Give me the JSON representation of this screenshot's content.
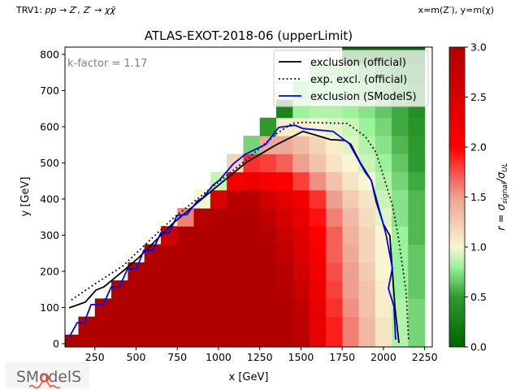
{
  "header": {
    "process_prefix": "TRV1: ",
    "process_math": "pp → Z′, Z′ → χχ̄",
    "axes_note": "x=m(Z′), y=m(χ)"
  },
  "logo": {
    "text": "SModelS"
  },
  "colors": {
    "exclusion_official": "#000000",
    "expected_official": "#000000",
    "exclusion_smodels": "#0000ff"
  },
  "chart_data": {
    "type": "heatmap",
    "title": "ATLAS-EXOT-2018-06 (upperLimit)",
    "annotation": "k-factor = 1.17",
    "xlabel": "x [GeV]",
    "ylabel": "y [GeV]",
    "xlim": [
      69,
      2296
    ],
    "ylim": [
      -9,
      820
    ],
    "xticks": [
      "250",
      "500",
      "750",
      "1000",
      "1250",
      "1500",
      "1750",
      "2000",
      "2250"
    ],
    "xtick_values": [
      250,
      500,
      750,
      1000,
      1250,
      1500,
      1750,
      2000,
      2250
    ],
    "yticks": [
      "0",
      "100",
      "200",
      "300",
      "400",
      "500",
      "600",
      "700",
      "800"
    ],
    "ytick_values": [
      0,
      100,
      200,
      300,
      400,
      500,
      600,
      700,
      800
    ],
    "grid": false,
    "legend_position": "top-right",
    "cell_size": [
      100,
      50
    ],
    "x": [
      100,
      200,
      300,
      400,
      500,
      600,
      700,
      800,
      900,
      1000,
      1100,
      1200,
      1300,
      1400,
      1500,
      1600,
      1700,
      1800,
      1900,
      2000,
      2100,
      2200
    ],
    "y": [
      0,
      50,
      100,
      150,
      200,
      250,
      300,
      350,
      400,
      450,
      500,
      550,
      600,
      650,
      700,
      750,
      800
    ],
    "z": [
      [
        3,
        3,
        3,
        3,
        3,
        3,
        3,
        3,
        3,
        3,
        3,
        3,
        3,
        3,
        2.9,
        2.3,
        1.9,
        1.6,
        1.35,
        1.1,
        0.85,
        0.7
      ],
      [
        null,
        3,
        3,
        3,
        3,
        3,
        3,
        3,
        3,
        3,
        3,
        3,
        3,
        3,
        2.85,
        2.3,
        1.9,
        1.6,
        1.35,
        1.1,
        0.85,
        0.7
      ],
      [
        null,
        null,
        3,
        3,
        3,
        3,
        3,
        3,
        3,
        3,
        3,
        3,
        3,
        3,
        2.8,
        2.25,
        1.85,
        1.55,
        1.3,
        1.05,
        0.85,
        0.7
      ],
      [
        null,
        null,
        null,
        3,
        3,
        3,
        3,
        3,
        3,
        3,
        3,
        3,
        3,
        2.95,
        2.7,
        2.2,
        1.8,
        1.5,
        1.3,
        1.05,
        0.8,
        0.65
      ],
      [
        null,
        null,
        null,
        null,
        3,
        3,
        3,
        3,
        3,
        3,
        3,
        3,
        3,
        2.9,
        2.6,
        2.15,
        1.75,
        1.5,
        1.25,
        1.0,
        0.8,
        0.65
      ],
      [
        null,
        null,
        null,
        null,
        null,
        3,
        3,
        3,
        3,
        3,
        3,
        3,
        3,
        2.8,
        2.5,
        2.1,
        1.7,
        1.45,
        1.2,
        1.0,
        0.8,
        0.65
      ],
      [
        null,
        null,
        null,
        null,
        null,
        null,
        2.6,
        3,
        3,
        3,
        3,
        3,
        2.95,
        2.7,
        2.4,
        2.05,
        1.7,
        1.4,
        1.2,
        1.0,
        0.8,
        0.6
      ],
      [
        null,
        null,
        null,
        null,
        null,
        null,
        null,
        1.6,
        2.9,
        3,
        3,
        3,
        2.8,
        2.55,
        2.3,
        1.95,
        1.6,
        1.35,
        1.15,
        0.95,
        0.75,
        0.6
      ],
      [
        null,
        null,
        null,
        null,
        null,
        null,
        null,
        null,
        1.0,
        2.5,
        2.9,
        2.9,
        2.6,
        2.35,
        2.15,
        1.85,
        1.5,
        1.25,
        1.1,
        0.9,
        0.75,
        0.6
      ],
      [
        null,
        null,
        null,
        null,
        null,
        null,
        null,
        null,
        null,
        0.9,
        2.15,
        2.2,
        2.1,
        2.0,
        1.8,
        1.55,
        1.3,
        1.1,
        1.0,
        0.85,
        0.7,
        0.55
      ],
      [
        null,
        null,
        null,
        null,
        null,
        null,
        null,
        null,
        null,
        null,
        1.2,
        1.85,
        1.8,
        1.7,
        1.5,
        1.3,
        1.1,
        1.0,
        0.9,
        0.8,
        0.65,
        0.5
      ],
      [
        null,
        null,
        null,
        null,
        null,
        null,
        null,
        null,
        null,
        null,
        null,
        0.7,
        1.45,
        1.45,
        1.35,
        1.2,
        1.05,
        0.95,
        0.85,
        0.75,
        0.6,
        0.5
      ],
      [
        null,
        null,
        null,
        null,
        null,
        null,
        null,
        null,
        null,
        null,
        null,
        null,
        0.5,
        1.05,
        1.05,
        1.0,
        0.95,
        0.9,
        0.8,
        0.7,
        0.55,
        0.45
      ],
      [
        null,
        null,
        null,
        null,
        null,
        null,
        null,
        null,
        null,
        null,
        null,
        null,
        null,
        0.3,
        0.8,
        0.85,
        0.85,
        0.8,
        0.75,
        0.65,
        0.55,
        0.4
      ],
      [
        null,
        null,
        null,
        null,
        null,
        null,
        null,
        null,
        null,
        null,
        null,
        null,
        null,
        null,
        0.75,
        0.8,
        0.8,
        0.75,
        0.7,
        0.6,
        0.5,
        0.35
      ],
      [
        null,
        null,
        null,
        null,
        null,
        null,
        null,
        null,
        null,
        null,
        null,
        null,
        null,
        null,
        null,
        0.75,
        0.75,
        0.7,
        0.6,
        0.5,
        0.3,
        0.2
      ],
      [
        null,
        null,
        null,
        null,
        null,
        null,
        null,
        null,
        null,
        null,
        null,
        null,
        null,
        null,
        null,
        null,
        null,
        0.05,
        0.05,
        0.05,
        0.05,
        0.05
      ]
    ],
    "colorbar": {
      "range": [
        0,
        3
      ],
      "ticks": [
        "0.0",
        "0.5",
        "1.0",
        "1.5",
        "2.0",
        "2.5",
        "3.0"
      ],
      "tick_values": [
        0,
        0.5,
        1,
        1.5,
        2,
        2.5,
        3
      ],
      "label_main": "r = σ",
      "label_sub1": "signal",
      "label_mid": "/σ",
      "label_sub2": "UL"
    },
    "series": [
      {
        "name": "exclusion (official)",
        "style": "solid",
        "color": "#000000",
        "points": [
          [
            94,
            99
          ],
          [
            192,
            115
          ],
          [
            256,
            148
          ],
          [
            305,
            157
          ],
          [
            424,
            202
          ],
          [
            512,
            236
          ],
          [
            724,
            333
          ],
          [
            941,
            416
          ],
          [
            1167,
            501
          ],
          [
            1350,
            550
          ],
          [
            1512,
            587
          ],
          [
            1680,
            564
          ],
          [
            1768,
            562
          ],
          [
            1803,
            551
          ],
          [
            1860,
            500
          ],
          [
            1926,
            452
          ],
          [
            1956,
            393
          ],
          [
            2000,
            330
          ],
          [
            2039,
            299
          ],
          [
            2054,
            202
          ],
          [
            2070,
            100
          ],
          [
            2094,
            2
          ]
        ]
      },
      {
        "name": "exp. excl. (official)",
        "style": "dotted",
        "color": "#000000",
        "points": [
          [
            108,
            121
          ],
          [
            250,
            165
          ],
          [
            420,
            215
          ],
          [
            720,
            345
          ],
          [
            940,
            425
          ],
          [
            1160,
            505
          ],
          [
            1350,
            580
          ],
          [
            1450,
            610
          ],
          [
            1520,
            612
          ],
          [
            1780,
            609
          ],
          [
            1890,
            573
          ],
          [
            1956,
            528
          ],
          [
            1975,
            501
          ],
          [
            2054,
            384
          ],
          [
            2089,
            299
          ],
          [
            2120,
            200
          ],
          [
            2138,
            142
          ],
          [
            2153,
            7
          ]
        ]
      },
      {
        "name": "exclusion (SModelS)",
        "style": "solid",
        "color": "#0000ff",
        "points": [
          [
            94,
            18
          ],
          [
            143,
            58
          ],
          [
            185,
            58
          ],
          [
            227,
            108
          ],
          [
            300,
            108
          ],
          [
            350,
            157
          ],
          [
            399,
            157
          ],
          [
            448,
            207
          ],
          [
            502,
            207
          ],
          [
            547,
            258
          ],
          [
            601,
            258
          ],
          [
            650,
            306
          ],
          [
            700,
            306
          ],
          [
            749,
            355
          ],
          [
            808,
            357
          ],
          [
            872,
            395
          ],
          [
            906,
            404
          ],
          [
            965,
            438
          ],
          [
            1005,
            452
          ],
          [
            1089,
            497
          ],
          [
            1163,
            524
          ],
          [
            1286,
            551
          ],
          [
            1365,
            598
          ],
          [
            1463,
            604
          ],
          [
            1512,
            595
          ],
          [
            1695,
            587
          ],
          [
            1793,
            553
          ],
          [
            1892,
            472
          ],
          [
            1926,
            452
          ],
          [
            2015,
            303
          ],
          [
            2054,
            209
          ],
          [
            2030,
            153
          ],
          [
            2064,
            103
          ],
          [
            2074,
            11
          ]
        ]
      }
    ]
  }
}
